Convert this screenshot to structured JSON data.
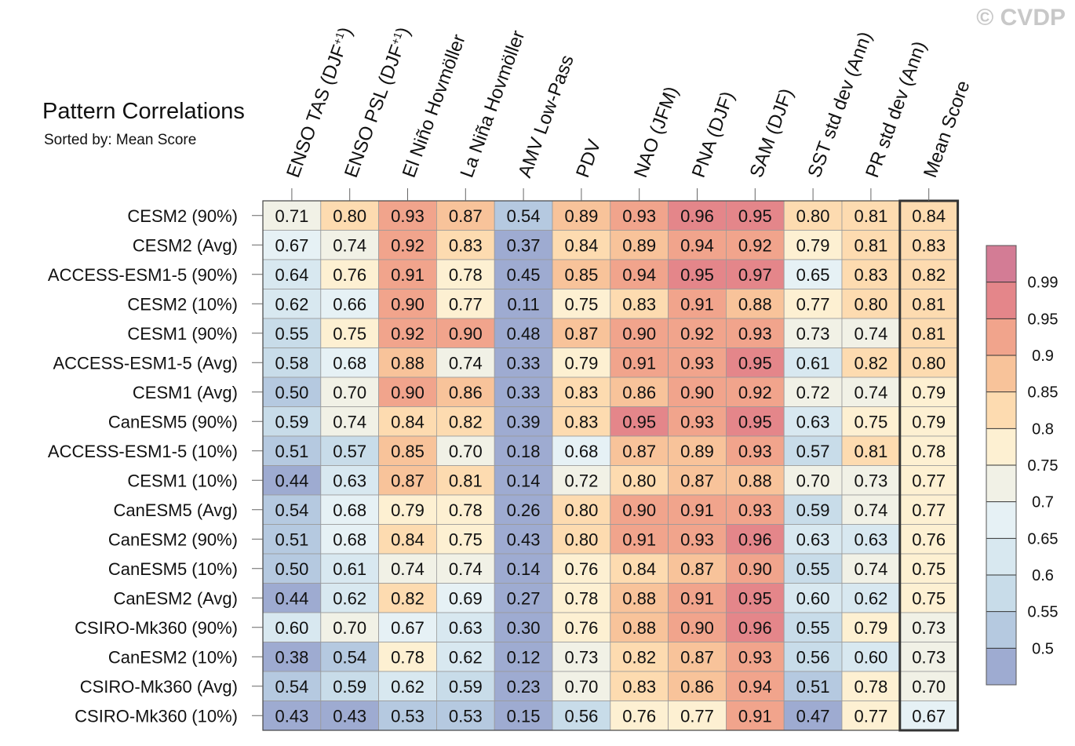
{
  "watermark": "© CVDP",
  "chart_data": {
    "type": "heatmap",
    "title": "Pattern Correlations",
    "subtitle": "Sorted by: Mean Score",
    "columns": [
      "ENSO TAS (DJF+1)",
      "ENSO PSL (DJF+1)",
      "El Niño Hovmöller",
      "La Niña Hovmöller",
      "AMV Low-Pass",
      "PDV",
      "NAO (JFM)",
      "PNA (DJF)",
      "SAM (DJF)",
      "SST std dev (Ann)",
      "PR std dev (Ann)",
      "Mean Score"
    ],
    "rows": [
      {
        "label": "CESM2 (90%)",
        "values": [
          0.71,
          0.8,
          0.93,
          0.87,
          0.54,
          0.89,
          0.93,
          0.96,
          0.95,
          0.8,
          0.81,
          0.84
        ]
      },
      {
        "label": "CESM2 (Avg)",
        "values": [
          0.67,
          0.74,
          0.92,
          0.83,
          0.37,
          0.84,
          0.89,
          0.94,
          0.92,
          0.79,
          0.81,
          0.83
        ]
      },
      {
        "label": "ACCESS-ESM1-5 (90%)",
        "values": [
          0.64,
          0.76,
          0.91,
          0.78,
          0.45,
          0.85,
          0.94,
          0.95,
          0.97,
          0.65,
          0.83,
          0.82
        ]
      },
      {
        "label": "CESM2 (10%)",
        "values": [
          0.62,
          0.66,
          0.9,
          0.77,
          0.11,
          0.75,
          0.83,
          0.91,
          0.88,
          0.77,
          0.8,
          0.81
        ]
      },
      {
        "label": "CESM1 (90%)",
        "values": [
          0.55,
          0.75,
          0.92,
          0.9,
          0.48,
          0.87,
          0.9,
          0.92,
          0.93,
          0.73,
          0.74,
          0.81
        ]
      },
      {
        "label": "ACCESS-ESM1-5 (Avg)",
        "values": [
          0.58,
          0.68,
          0.88,
          0.74,
          0.33,
          0.79,
          0.91,
          0.93,
          0.95,
          0.61,
          0.82,
          0.8
        ]
      },
      {
        "label": "CESM1 (Avg)",
        "values": [
          0.5,
          0.7,
          0.9,
          0.86,
          0.33,
          0.83,
          0.86,
          0.9,
          0.92,
          0.72,
          0.74,
          0.79
        ]
      },
      {
        "label": "CanESM5 (90%)",
        "values": [
          0.59,
          0.74,
          0.84,
          0.82,
          0.39,
          0.83,
          0.95,
          0.93,
          0.95,
          0.63,
          0.75,
          0.79
        ]
      },
      {
        "label": "ACCESS-ESM1-5 (10%)",
        "values": [
          0.51,
          0.57,
          0.85,
          0.7,
          0.18,
          0.68,
          0.87,
          0.89,
          0.93,
          0.57,
          0.81,
          0.78
        ]
      },
      {
        "label": "CESM1 (10%)",
        "values": [
          0.44,
          0.63,
          0.87,
          0.81,
          0.14,
          0.72,
          0.8,
          0.87,
          0.88,
          0.7,
          0.73,
          0.77
        ]
      },
      {
        "label": "CanESM5 (Avg)",
        "values": [
          0.54,
          0.68,
          0.79,
          0.78,
          0.26,
          0.8,
          0.9,
          0.91,
          0.93,
          0.59,
          0.74,
          0.77
        ]
      },
      {
        "label": "CanESM2 (90%)",
        "values": [
          0.51,
          0.68,
          0.84,
          0.75,
          0.43,
          0.8,
          0.91,
          0.93,
          0.96,
          0.63,
          0.63,
          0.76
        ]
      },
      {
        "label": "CanESM5 (10%)",
        "values": [
          0.5,
          0.61,
          0.74,
          0.74,
          0.14,
          0.76,
          0.84,
          0.87,
          0.9,
          0.55,
          0.74,
          0.75
        ]
      },
      {
        "label": "CanESM2 (Avg)",
        "values": [
          0.44,
          0.62,
          0.82,
          0.69,
          0.27,
          0.78,
          0.88,
          0.91,
          0.95,
          0.6,
          0.62,
          0.75
        ]
      },
      {
        "label": "CSIRO-Mk360 (90%)",
        "values": [
          0.6,
          0.7,
          0.67,
          0.63,
          0.3,
          0.76,
          0.88,
          0.9,
          0.96,
          0.55,
          0.79,
          0.73
        ]
      },
      {
        "label": "CanESM2 (10%)",
        "values": [
          0.38,
          0.54,
          0.78,
          0.62,
          0.12,
          0.73,
          0.82,
          0.87,
          0.93,
          0.56,
          0.6,
          0.73
        ]
      },
      {
        "label": "CSIRO-Mk360 (Avg)",
        "values": [
          0.54,
          0.59,
          0.62,
          0.59,
          0.23,
          0.7,
          0.83,
          0.86,
          0.94,
          0.51,
          0.78,
          0.7
        ]
      },
      {
        "label": "CSIRO-Mk360 (10%)",
        "values": [
          0.43,
          0.43,
          0.53,
          0.53,
          0.15,
          0.56,
          0.76,
          0.77,
          0.91,
          0.47,
          0.77,
          0.67
        ]
      }
    ],
    "colorbar": {
      "levels": [
        0.5,
        0.55,
        0.6,
        0.65,
        0.7,
        0.75,
        0.8,
        0.85,
        0.9,
        0.95,
        0.99
      ],
      "tick_labels": [
        "0.5",
        "0.55",
        "0.6",
        "0.65",
        "0.7",
        "0.75",
        "0.8",
        "0.85",
        "0.9",
        "0.95",
        "0.99"
      ],
      "colors": [
        "#9eabd1",
        "#b5c9e0",
        "#c8dce9",
        "#d8e8f0",
        "#e6f1f5",
        "#f1f1e6",
        "#fdf0d2",
        "#fddbb0",
        "#f8c39a",
        "#f1a48c",
        "#e4868a",
        "#d37c95"
      ]
    }
  }
}
